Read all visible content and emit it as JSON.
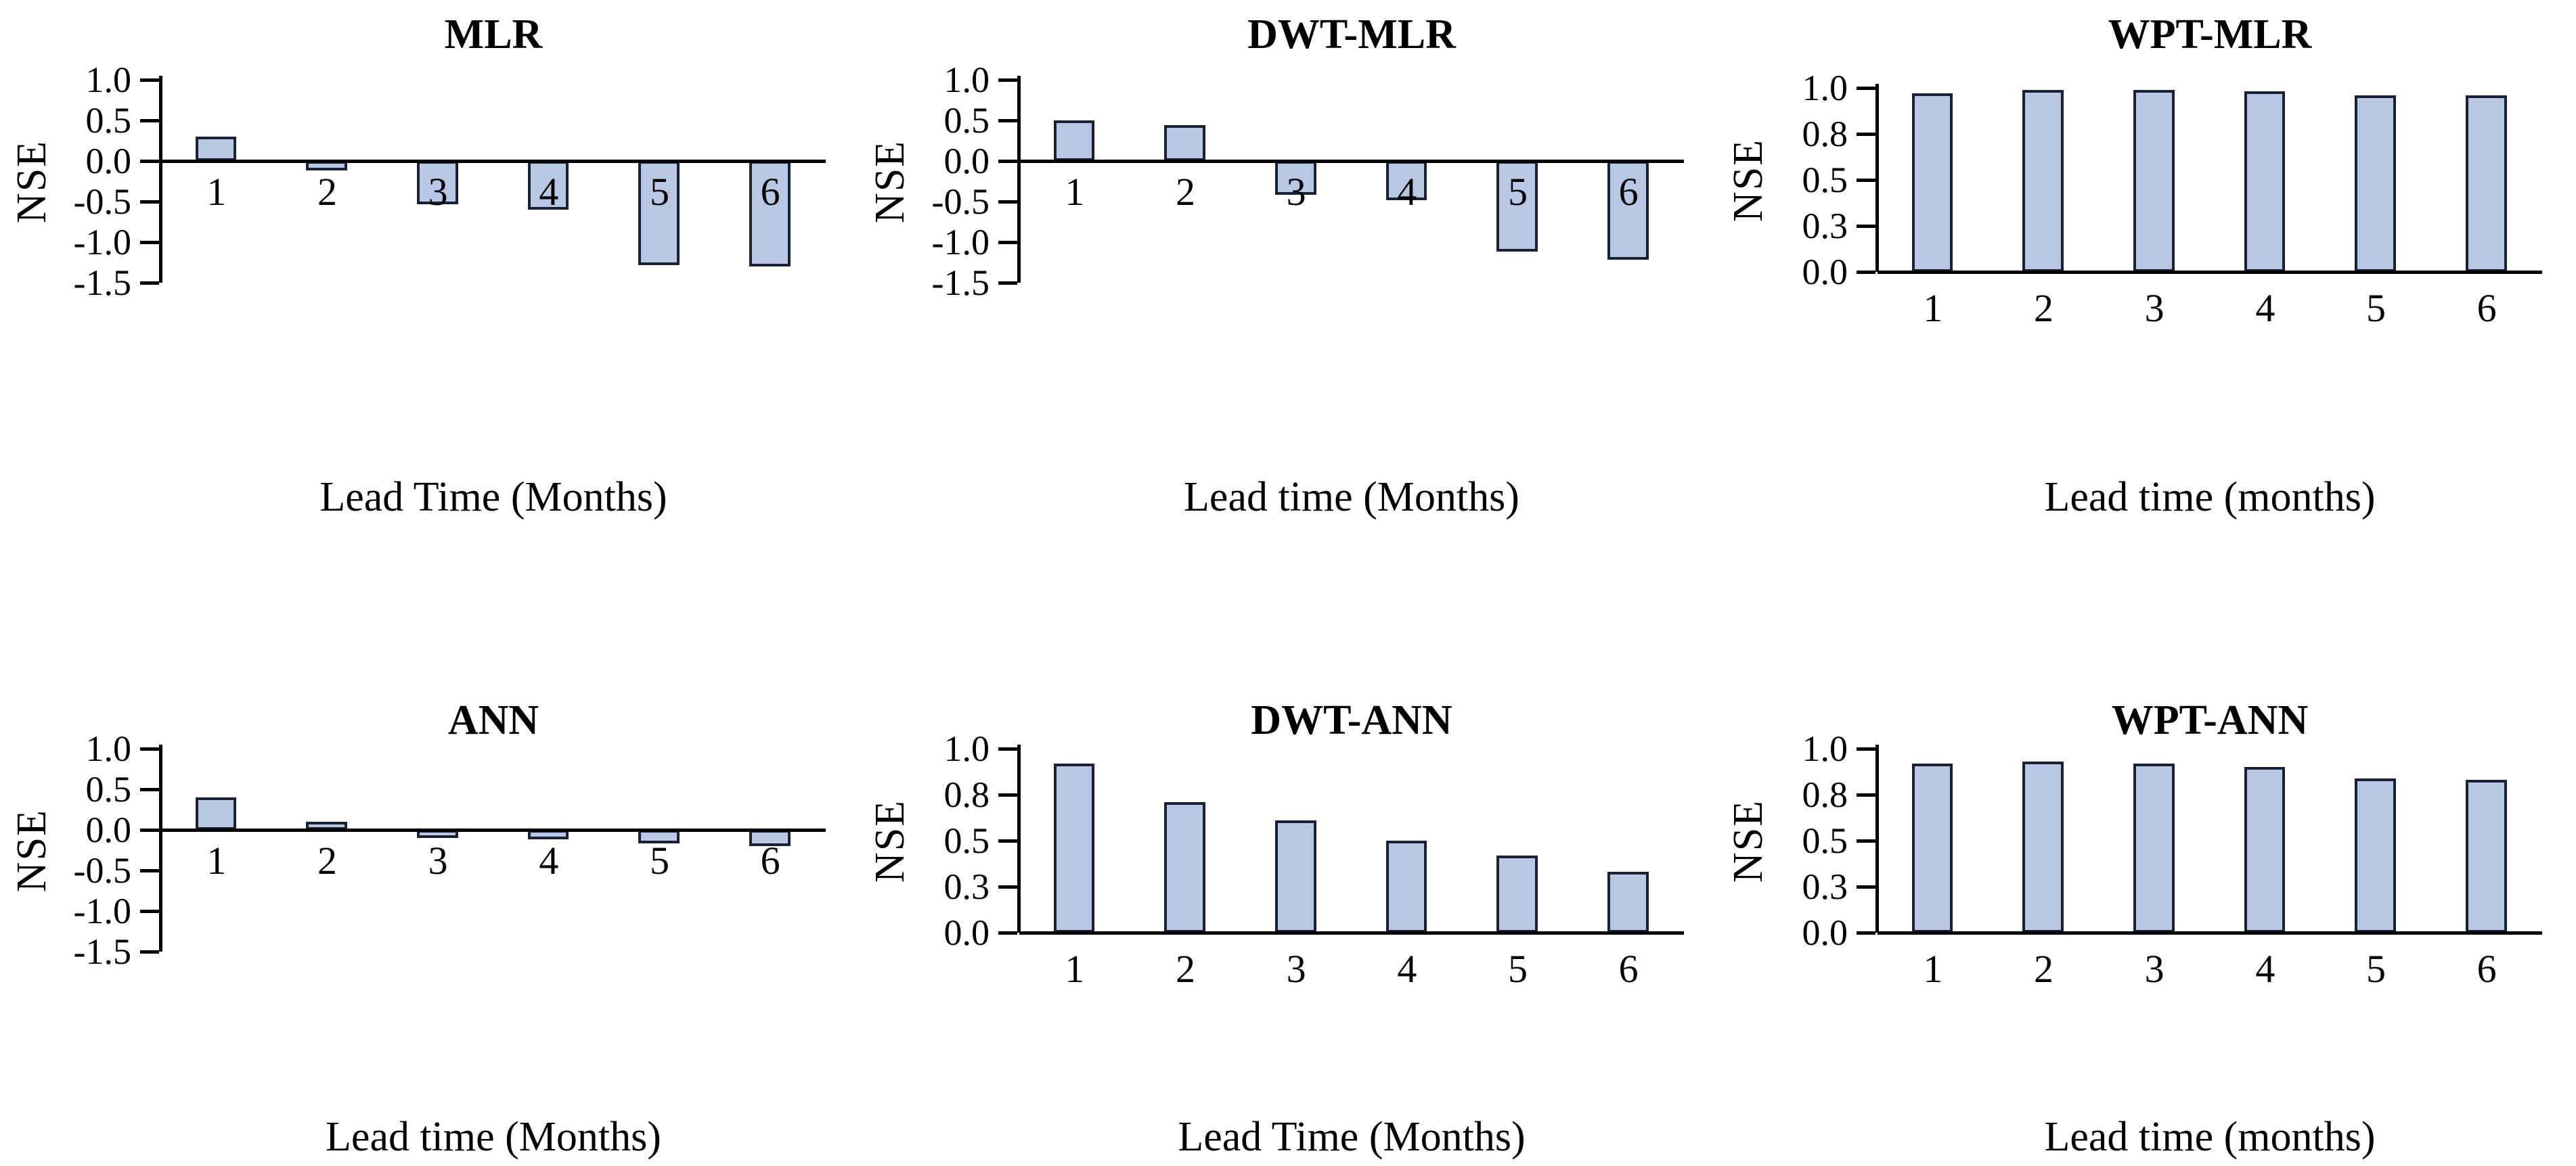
{
  "figure": {
    "background": "#ffffff",
    "styles": {
      "bar_fill": "#b8c7e4",
      "bar_border": "#1b2135",
      "axis_color": "#000000",
      "text_color": "#000000"
    }
  },
  "chart_data": [
    {
      "id": "mlr",
      "type": "bar",
      "title": "MLR",
      "xlabel": "Lead Time (Months)",
      "ylabel": "NSE",
      "categories": [
        "1",
        "2",
        "3",
        "4",
        "5",
        "6"
      ],
      "values": [
        0.3,
        -0.12,
        -0.53,
        -0.6,
        -1.28,
        -1.3
      ],
      "ylim": [
        -1.5,
        1.0
      ],
      "yticks": [
        {
          "label": "1.0",
          "value": 1.0
        },
        {
          "label": "0.5",
          "value": 0.5
        },
        {
          "label": "0.0",
          "value": 0.0
        },
        {
          "label": "-0.5",
          "value": -0.5
        },
        {
          "label": "-1.0",
          "value": -1.0
        },
        {
          "label": "-1.5",
          "value": -1.5
        }
      ],
      "grid": false,
      "legend": null,
      "category_label_position": "inside-below-zero"
    },
    {
      "id": "dwt-mlr",
      "type": "bar",
      "title": "DWT-MLR",
      "xlabel": "Lead time (Months)",
      "ylabel": "NSE",
      "categories": [
        "1",
        "2",
        "3",
        "4",
        "5",
        "6"
      ],
      "values": [
        0.5,
        0.44,
        -0.42,
        -0.48,
        -1.12,
        -1.22
      ],
      "ylim": [
        -1.5,
        1.0
      ],
      "yticks": [
        {
          "label": "1.0",
          "value": 1.0
        },
        {
          "label": "0.5",
          "value": 0.5
        },
        {
          "label": "0.0",
          "value": 0.0
        },
        {
          "label": "-0.5",
          "value": -0.5
        },
        {
          "label": "-1.0",
          "value": -1.0
        },
        {
          "label": "-1.5",
          "value": -1.5
        }
      ],
      "grid": false,
      "legend": null,
      "category_label_position": "inside-below-zero"
    },
    {
      "id": "wpt-mlr",
      "type": "bar",
      "title": "WPT-MLR",
      "xlabel": "Lead time (months)",
      "ylabel": "NSE",
      "categories": [
        "1",
        "2",
        "3",
        "4",
        "5",
        "6"
      ],
      "values": [
        0.97,
        0.99,
        0.99,
        0.98,
        0.96,
        0.96
      ],
      "ylim": [
        0.0,
        1.0
      ],
      "yticks": [
        {
          "label": "1.0",
          "value": 1.0
        },
        {
          "label": "0.8",
          "value": 0.75
        },
        {
          "label": "0.5",
          "value": 0.5
        },
        {
          "label": "0.3",
          "value": 0.25
        },
        {
          "label": "0.0",
          "value": 0.0
        }
      ],
      "grid": false,
      "legend": null,
      "category_label_position": "below-axis"
    },
    {
      "id": "ann",
      "type": "bar",
      "title": "ANN",
      "xlabel": "Lead time (Months)",
      "ylabel": "NSE",
      "categories": [
        "1",
        "2",
        "3",
        "4",
        "5",
        "6"
      ],
      "values": [
        0.4,
        0.1,
        -0.1,
        -0.12,
        -0.17,
        -0.2
      ],
      "ylim": [
        -1.5,
        1.0
      ],
      "yticks": [
        {
          "label": "1.0",
          "value": 1.0
        },
        {
          "label": "0.5",
          "value": 0.5
        },
        {
          "label": "0.0",
          "value": 0.0
        },
        {
          "label": "-0.5",
          "value": -0.5
        },
        {
          "label": "-1.0",
          "value": -1.0
        },
        {
          "label": "-1.5",
          "value": -1.5
        }
      ],
      "grid": false,
      "legend": null,
      "category_label_position": "inside-below-zero"
    },
    {
      "id": "dwt-ann",
      "type": "bar",
      "title": "DWT-ANN",
      "xlabel": "Lead Time (Months)",
      "ylabel": "NSE",
      "categories": [
        "1",
        "2",
        "3",
        "4",
        "5",
        "6"
      ],
      "values": [
        0.92,
        0.71,
        0.61,
        0.5,
        0.42,
        0.33
      ],
      "ylim": [
        0.0,
        1.0
      ],
      "yticks": [
        {
          "label": "1.0",
          "value": 1.0
        },
        {
          "label": "0.8",
          "value": 0.75
        },
        {
          "label": "0.5",
          "value": 0.5
        },
        {
          "label": "0.3",
          "value": 0.25
        },
        {
          "label": "0.0",
          "value": 0.0
        }
      ],
      "grid": false,
      "legend": null,
      "category_label_position": "below-axis"
    },
    {
      "id": "wpt-ann",
      "type": "bar",
      "title": "WPT-ANN",
      "xlabel": "Lead time (months)",
      "ylabel": "NSE",
      "categories": [
        "1",
        "2",
        "3",
        "4",
        "5",
        "6"
      ],
      "values": [
        0.92,
        0.93,
        0.92,
        0.9,
        0.84,
        0.83
      ],
      "ylim": [
        0.0,
        1.0
      ],
      "yticks": [
        {
          "label": "1.0",
          "value": 1.0
        },
        {
          "label": "0.8",
          "value": 0.75
        },
        {
          "label": "0.5",
          "value": 0.5
        },
        {
          "label": "0.3",
          "value": 0.25
        },
        {
          "label": "0.0",
          "value": 0.0
        }
      ],
      "grid": false,
      "legend": null,
      "category_label_position": "below-axis"
    }
  ]
}
